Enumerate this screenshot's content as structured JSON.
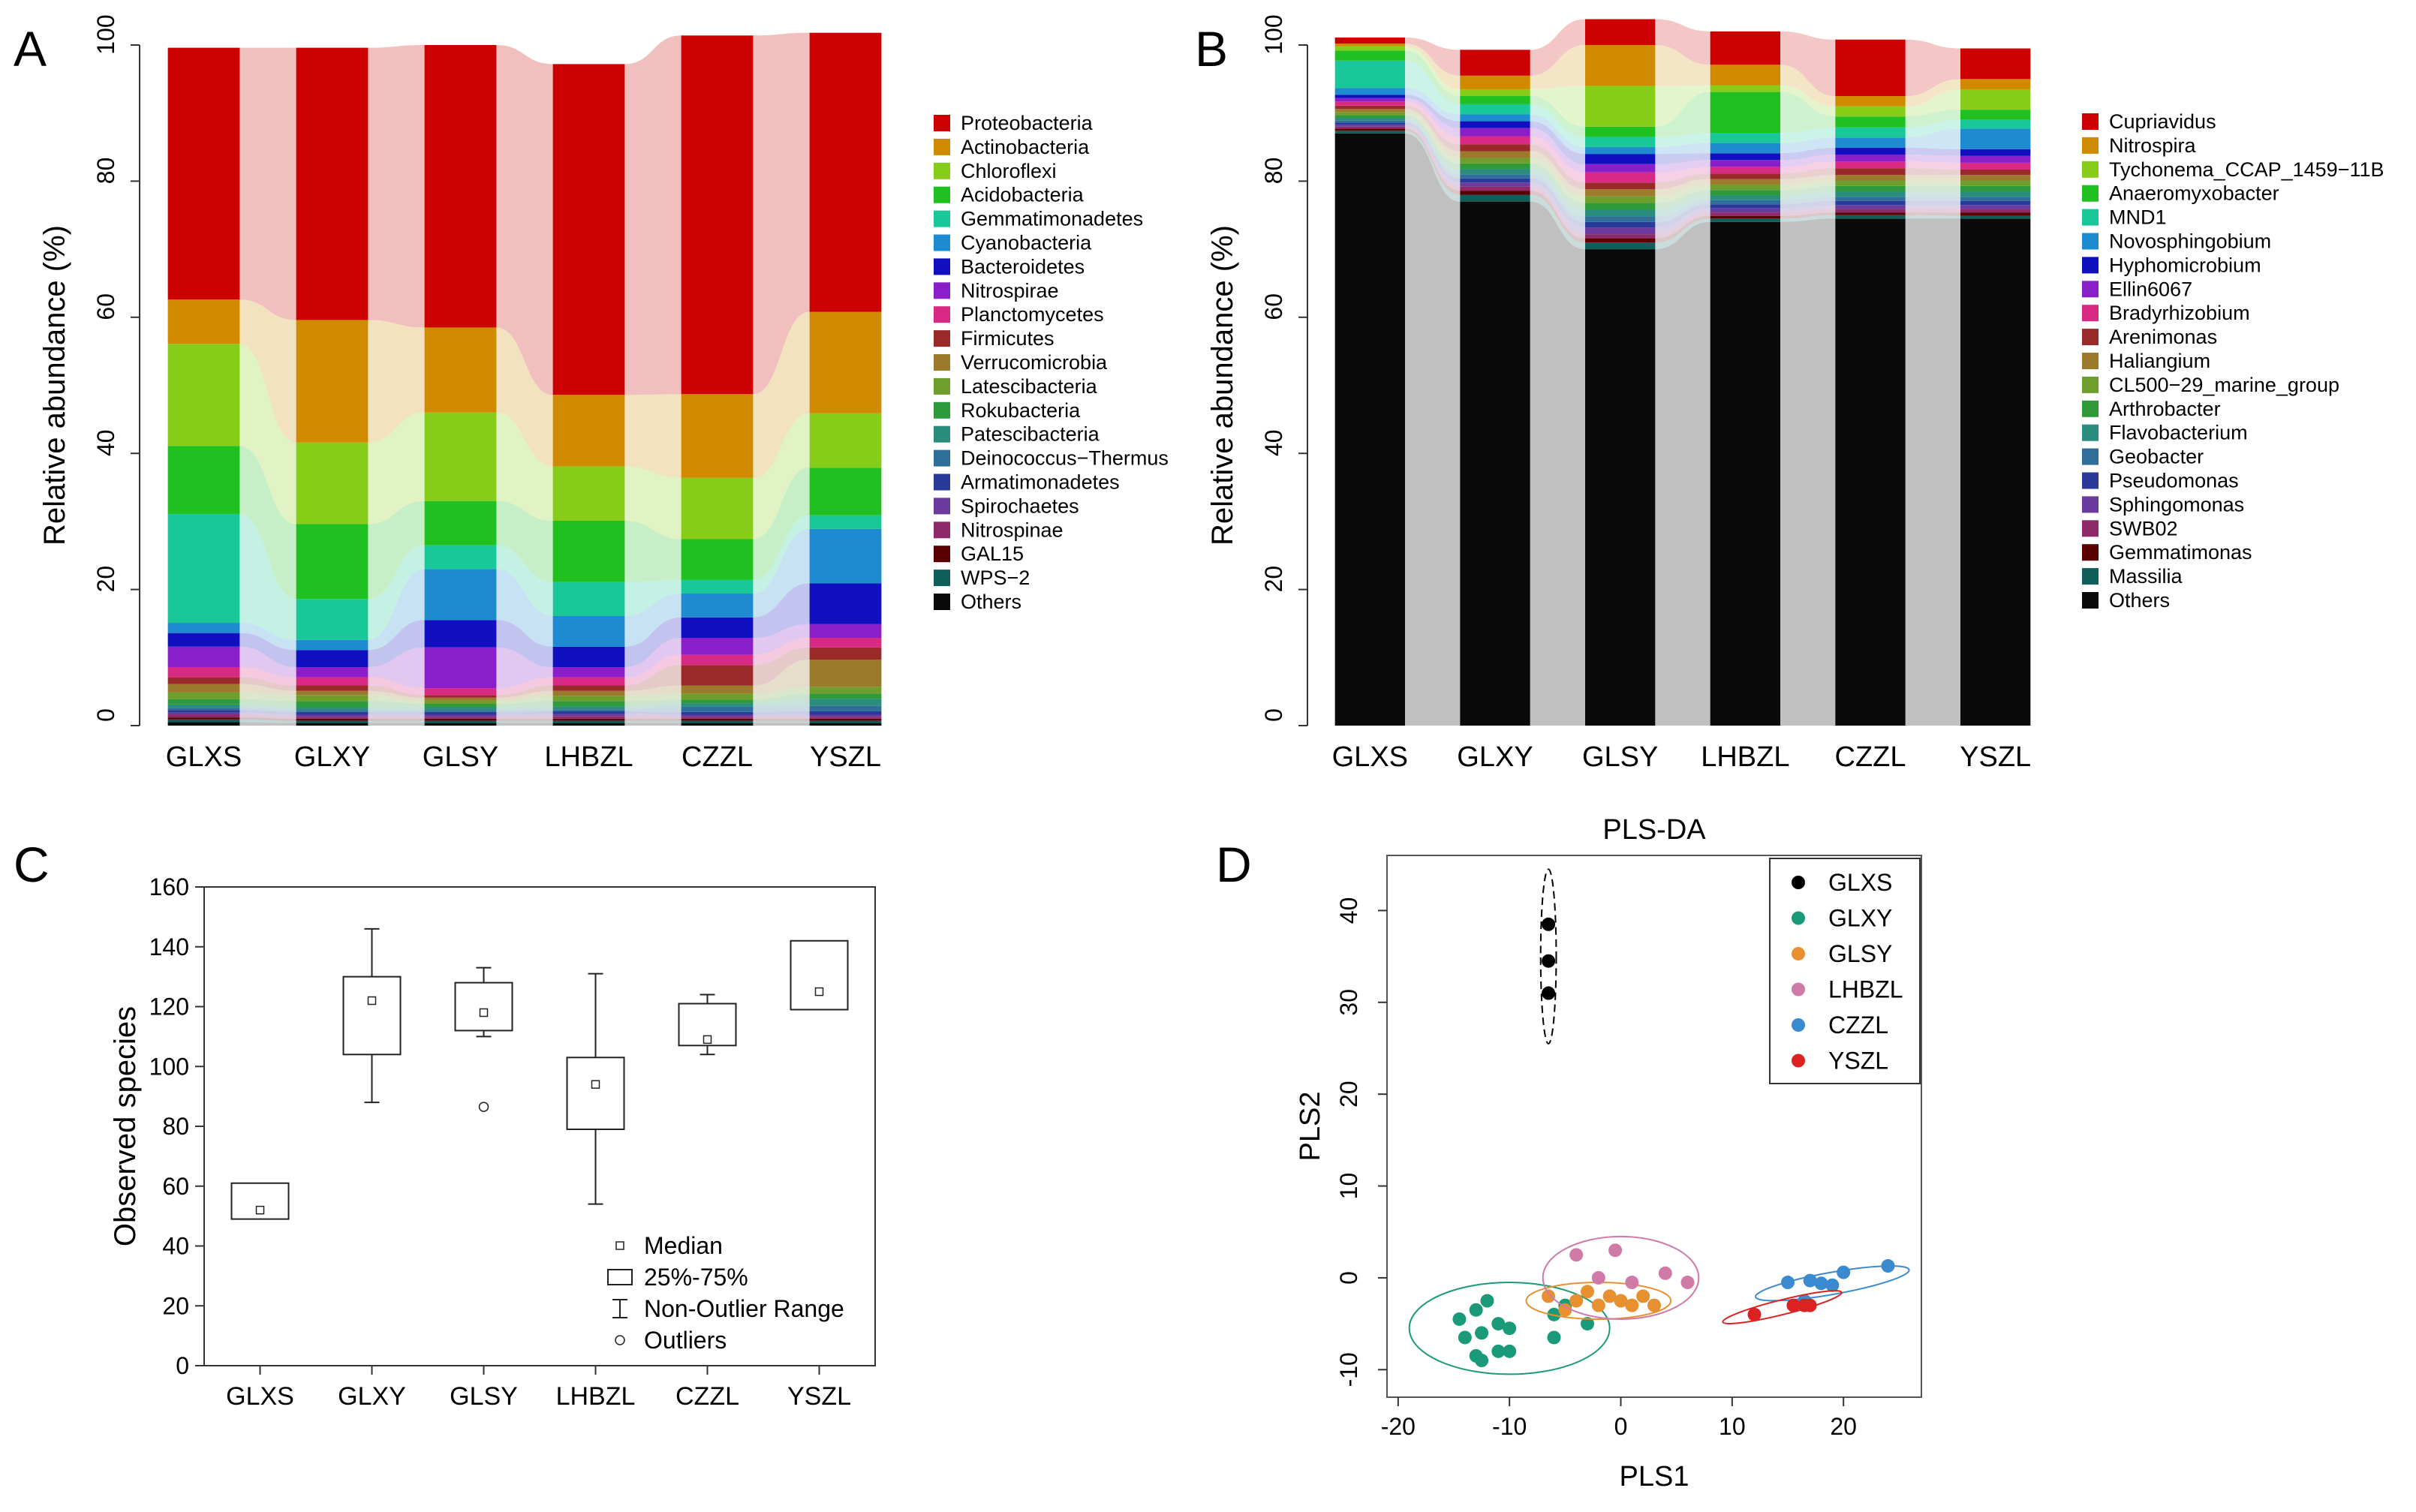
{
  "panels": {
    "a": "A",
    "b": "B",
    "c": "C",
    "d": "D"
  },
  "chart_data": [
    {
      "id": "A",
      "type": "bar",
      "stacked": true,
      "ylabel": "Relative abundance (%)",
      "ylim": [
        0,
        100
      ],
      "yticks": [
        0,
        20,
        40,
        60,
        80,
        100
      ],
      "categories": [
        "GLXS",
        "GLXY",
        "GLSY",
        "LHBZL",
        "CZZL",
        "YSZL"
      ],
      "series": [
        {
          "name": "Others",
          "color": "#0a0a0a",
          "values": [
            0.5,
            0.4,
            0.4,
            0.4,
            0.4,
            0.4
          ]
        },
        {
          "name": "WPS-2",
          "color": "#0e5e5a",
          "values": [
            0.4,
            0.3,
            0.3,
            0.3,
            0.3,
            0.3
          ]
        },
        {
          "name": "GAL15",
          "color": "#5a0000",
          "values": [
            0.3,
            0.3,
            0.3,
            0.3,
            0.3,
            0.3
          ]
        },
        {
          "name": "Nitrospinae",
          "color": "#8e2a6a",
          "values": [
            0.4,
            0.3,
            0.3,
            0.4,
            0.3,
            0.3
          ]
        },
        {
          "name": "Spirochaetes",
          "color": "#6a3a9c",
          "values": [
            0.3,
            0.3,
            0.3,
            0.3,
            0.3,
            0.3
          ]
        },
        {
          "name": "Armatimonadetes",
          "color": "#2a3a9a",
          "values": [
            0.4,
            0.4,
            0.4,
            0.4,
            0.4,
            0.5
          ]
        },
        {
          "name": "Deinococcus-Thermus",
          "color": "#2f6e98",
          "values": [
            0.3,
            0.3,
            0.3,
            0.3,
            0.8,
            0.8
          ]
        },
        {
          "name": "Patescibacteria",
          "color": "#2a8c7c",
          "values": [
            0.5,
            0.4,
            0.4,
            0.4,
            0.5,
            1.0
          ]
        },
        {
          "name": "Rokubacteria",
          "color": "#2e9a3c",
          "values": [
            0.8,
            0.9,
            0.5,
            0.8,
            0.5,
            0.8
          ]
        },
        {
          "name": "Latescibacteria",
          "color": "#6e9e2c",
          "values": [
            1.0,
            0.9,
            0.5,
            0.8,
            0.9,
            1.0
          ]
        },
        {
          "name": "Verrucomicrobia",
          "color": "#9c7a2c",
          "values": [
            1.2,
            0.6,
            0.4,
            0.7,
            1.2,
            4.0
          ]
        },
        {
          "name": "Firmicutes",
          "color": "#9a2a2a",
          "values": [
            1.0,
            0.8,
            0.4,
            0.8,
            3.0,
            1.8
          ]
        },
        {
          "name": "Planctomycetes",
          "color": "#d82a84",
          "values": [
            1.5,
            1.2,
            1.0,
            1.2,
            1.5,
            1.4
          ]
        },
        {
          "name": "Nitrospirae",
          "color": "#8a1ec8",
          "values": [
            3.0,
            1.5,
            6.0,
            1.5,
            2.5,
            2.0
          ]
        },
        {
          "name": "Bacteroidetes",
          "color": "#1010c0",
          "values": [
            2.0,
            2.5,
            4.0,
            3.0,
            3.0,
            6.0
          ]
        },
        {
          "name": "Cyanobacteria",
          "color": "#1e8ad0",
          "values": [
            1.5,
            1.5,
            7.5,
            4.5,
            3.5,
            8.0
          ]
        },
        {
          "name": "Gemmatimonadetes",
          "color": "#18c898",
          "values": [
            16.0,
            6.0,
            3.5,
            5.0,
            2.0,
            2.0
          ]
        },
        {
          "name": "Acidobacteria",
          "color": "#20c020",
          "values": [
            10.0,
            11.0,
            6.5,
            9.0,
            6.0,
            7.0
          ]
        },
        {
          "name": "Chloroflexi",
          "color": "#86cc18",
          "values": [
            15.0,
            12.0,
            13.0,
            8.0,
            9.0,
            8.0
          ]
        },
        {
          "name": "Actinobacteria",
          "color": "#d08a00",
          "values": [
            6.5,
            18.0,
            12.5,
            10.5,
            12.3,
            14.9
          ]
        },
        {
          "name": "Proteobacteria",
          "color": "#cc0000",
          "values": [
            37.0,
            40.0,
            41.5,
            48.6,
            52.7,
            41.0
          ]
        }
      ],
      "legend": [
        "Proteobacteria",
        "Actinobacteria",
        "Chloroflexi",
        "Acidobacteria",
        "Gemmatimonadetes",
        "Cyanobacteria",
        "Bacteroidetes",
        "Nitrospirae",
        "Planctomycetes",
        "Firmicutes",
        "Verrucomicrobia",
        "Latescibacteria",
        "Rokubacteria",
        "Patescibacteria",
        "Deinococcus−Thermus",
        "Armatimonadetes",
        "Spirochaetes",
        "Nitrospinae",
        "GAL15",
        "WPS−2",
        "Others"
      ]
    },
    {
      "id": "B",
      "type": "bar",
      "stacked": true,
      "ylabel": "Relative abundance (%)",
      "ylim": [
        0,
        100
      ],
      "yticks": [
        0,
        20,
        40,
        60,
        80,
        100
      ],
      "categories": [
        "GLXS",
        "GLXY",
        "GLSY",
        "LHBZL",
        "CZZL",
        "YSZL"
      ],
      "series": [
        {
          "name": "Others",
          "color": "#0a0a0a",
          "values": [
            87.0,
            77.0,
            70.0,
            74.0,
            74.5,
            74.5
          ]
        },
        {
          "name": "Massilia",
          "color": "#0e5e5a",
          "values": [
            0.4,
            1.0,
            1.0,
            0.5,
            0.5,
            0.4
          ]
        },
        {
          "name": "Gemmatimonas",
          "color": "#5a0000",
          "values": [
            0.3,
            0.6,
            0.6,
            0.4,
            0.4,
            0.5
          ]
        },
        {
          "name": "SWB02",
          "color": "#8e2a6a",
          "values": [
            0.3,
            0.6,
            0.6,
            0.5,
            0.5,
            0.5
          ]
        },
        {
          "name": "Sphingomonas",
          "color": "#6a3a9c",
          "values": [
            0.3,
            0.6,
            1.0,
            0.6,
            0.6,
            0.6
          ]
        },
        {
          "name": "Pseudomonas",
          "color": "#2a3a9a",
          "values": [
            0.3,
            0.6,
            0.8,
            0.6,
            0.6,
            0.6
          ]
        },
        {
          "name": "Geobacter",
          "color": "#2f6e98",
          "values": [
            0.3,
            0.6,
            0.8,
            0.6,
            0.6,
            0.6
          ]
        },
        {
          "name": "Flavobacterium",
          "color": "#2a8c7c",
          "values": [
            0.4,
            0.8,
            1.0,
            0.7,
            0.8,
            0.8
          ]
        },
        {
          "name": "Arthrobacter",
          "color": "#2e9a3c",
          "values": [
            0.4,
            0.8,
            1.0,
            0.8,
            0.8,
            0.8
          ]
        },
        {
          "name": "CL500-29_marine_group",
          "color": "#6e9e2c",
          "values": [
            0.4,
            0.8,
            1.0,
            0.8,
            0.8,
            0.8
          ]
        },
        {
          "name": "Haliangium",
          "color": "#9c7a2c",
          "values": [
            0.5,
            1.0,
            1.0,
            0.8,
            0.8,
            0.8
          ]
        },
        {
          "name": "Arenimonas",
          "color": "#9a2a2a",
          "values": [
            0.5,
            1.0,
            1.0,
            0.8,
            1.0,
            0.8
          ]
        },
        {
          "name": "Bradyrhizobium",
          "color": "#d82a84",
          "values": [
            0.6,
            1.2,
            1.5,
            1.0,
            1.0,
            1.0
          ]
        },
        {
          "name": "Ellin6067",
          "color": "#8a1ec8",
          "values": [
            0.5,
            1.2,
            1.2,
            1.0,
            1.0,
            1.0
          ]
        },
        {
          "name": "Hyphomicrobium",
          "color": "#1010c0",
          "values": [
            0.5,
            1.0,
            1.5,
            1.0,
            1.0,
            1.0
          ]
        },
        {
          "name": "Novosphingobium",
          "color": "#1e8ad0",
          "values": [
            1.0,
            1.0,
            1.0,
            1.5,
            1.5,
            3.0
          ]
        },
        {
          "name": "MND1",
          "color": "#18c898",
          "values": [
            4.0,
            1.5,
            1.5,
            1.5,
            1.5,
            1.3
          ]
        },
        {
          "name": "Anaeromyxobacter",
          "color": "#20c020",
          "values": [
            1.5,
            1.2,
            1.5,
            6.0,
            1.6,
            1.5
          ]
        },
        {
          "name": "Tychonema_CCAP_1459-11B",
          "color": "#86cc18",
          "values": [
            0.6,
            1.0,
            6.0,
            1.0,
            1.5,
            3.0
          ]
        },
        {
          "name": "Nitrospira",
          "color": "#d08a00",
          "values": [
            0.4,
            2.0,
            6.0,
            3.0,
            1.5,
            1.5
          ]
        },
        {
          "name": "Cupriavidus",
          "color": "#cc0000",
          "values": [
            0.9,
            3.8,
            3.8,
            4.9,
            8.3,
            4.5
          ]
        }
      ],
      "legend": [
        "Cupriavidus",
        "Nitrospira",
        "Tychonema_CCAP_1459−11B",
        "Anaeromyxobacter",
        "MND1",
        "Novosphingobium",
        "Hyphomicrobium",
        "Ellin6067",
        "Bradyrhizobium",
        "Arenimonas",
        "Haliangium",
        "CL500−29_marine_group",
        "Arthrobacter",
        "Flavobacterium",
        "Geobacter",
        "Pseudomonas",
        "Sphingomonas",
        "SWB02",
        "Gemmatimonas",
        "Massilia",
        "Others"
      ]
    },
    {
      "id": "C",
      "type": "box",
      "ylabel": "Observed species",
      "ylim": [
        0,
        160
      ],
      "yticks": [
        0,
        20,
        40,
        60,
        80,
        100,
        120,
        140,
        160
      ],
      "categories": [
        "GLXS",
        "GLXY",
        "GLSY",
        "LHBZL",
        "CZZL",
        "YSZL"
      ],
      "boxes": [
        {
          "q1": 49,
          "q3": 61,
          "median": 52,
          "whisker_low": null,
          "whisker_high": null,
          "outliers": []
        },
        {
          "q1": 104,
          "q3": 130,
          "median": 122,
          "whisker_low": 88,
          "whisker_high": 146,
          "outliers": []
        },
        {
          "q1": 112,
          "q3": 128,
          "median": 118,
          "whisker_low": 110,
          "whisker_high": 133,
          "outliers": [
            86.5
          ]
        },
        {
          "q1": 79,
          "q3": 103,
          "median": 94,
          "whisker_low": 54,
          "whisker_high": 131,
          "outliers": []
        },
        {
          "q1": 107,
          "q3": 121,
          "median": 109,
          "whisker_low": 104,
          "whisker_high": 124,
          "outliers": []
        },
        {
          "q1": 119,
          "q3": 142,
          "median": 125,
          "whisker_low": null,
          "whisker_high": null,
          "outliers": []
        }
      ],
      "legend": [
        "Median",
        "25%-75%",
        "Non-Outlier Range",
        "Outliers"
      ]
    },
    {
      "id": "D",
      "type": "scatter",
      "title": "PLS-DA",
      "xlabel": "PLS1",
      "ylabel": "PLS2",
      "xlim": [
        -21,
        27
      ],
      "ylim": [
        -13,
        46
      ],
      "xticks": [
        -20,
        -10,
        0,
        10,
        20
      ],
      "yticks": [
        -10,
        0,
        10,
        20,
        30,
        40
      ],
      "series": [
        {
          "name": "GLXS",
          "color": "#000000",
          "points": [
            [
              -6.5,
              38.5
            ],
            [
              -6.5,
              34.5
            ],
            [
              -6.5,
              31
            ]
          ],
          "ellipse": {
            "cx": -6.5,
            "cy": 35,
            "rx": 0.7,
            "ry": 9.5,
            "angle": 0
          }
        },
        {
          "name": "GLXY",
          "color": "#1a9a78",
          "points": [
            [
              -14.5,
              -4.5
            ],
            [
              -13,
              -3.5
            ],
            [
              -12,
              -2.5
            ],
            [
              -14,
              -6.5
            ],
            [
              -12.5,
              -6
            ],
            [
              -11,
              -5
            ],
            [
              -13,
              -8.5
            ],
            [
              -12.5,
              -9
            ],
            [
              -11,
              -8
            ],
            [
              -10,
              -8
            ],
            [
              -10,
              -5.5
            ],
            [
              -6,
              -6.5
            ],
            [
              -6,
              -4
            ],
            [
              -5,
              -3
            ],
            [
              -3,
              -5
            ]
          ],
          "ellipse": {
            "cx": -10,
            "cy": -5.5,
            "rx": 9,
            "ry": 5,
            "angle": 0
          }
        },
        {
          "name": "GLSY",
          "color": "#e89030",
          "points": [
            [
              -6.5,
              -2
            ],
            [
              -5,
              -3.5
            ],
            [
              -4,
              -2.5
            ],
            [
              -3,
              -1.5
            ],
            [
              -2,
              -3
            ],
            [
              -1,
              -2
            ],
            [
              0,
              -2.5
            ],
            [
              1,
              -3
            ],
            [
              2,
              -2
            ],
            [
              3,
              -3
            ]
          ],
          "ellipse": {
            "cx": -2,
            "cy": -2.5,
            "rx": 6.5,
            "ry": 2,
            "angle": 0
          }
        },
        {
          "name": "LHBZL",
          "color": "#d07aa8",
          "points": [
            [
              -4,
              2.5
            ],
            [
              -0.5,
              3
            ],
            [
              1,
              -0.5
            ],
            [
              4,
              0.5
            ],
            [
              6,
              -0.5
            ],
            [
              -2,
              0
            ]
          ],
          "ellipse": {
            "cx": 0,
            "cy": 0,
            "rx": 7,
            "ry": 4.5,
            "angle": 0
          }
        },
        {
          "name": "CZZL",
          "color": "#3a8ad0",
          "points": [
            [
              15,
              -0.5
            ],
            [
              17,
              -0.3
            ],
            [
              18,
              -0.6
            ],
            [
              19,
              -0.8
            ],
            [
              20,
              0.6
            ],
            [
              24,
              1.3
            ],
            [
              16.5,
              -2.5
            ]
          ],
          "ellipse": {
            "cx": 19,
            "cy": -0.6,
            "rx": 7,
            "ry": 1.2,
            "angle": -10
          }
        },
        {
          "name": "YSZL",
          "color": "#dd2020",
          "points": [
            [
              12,
              -4
            ],
            [
              15.5,
              -3
            ],
            [
              16.5,
              -3
            ],
            [
              17,
              -3
            ]
          ],
          "ellipse": {
            "cx": 14.5,
            "cy": -3.2,
            "rx": 5.5,
            "ry": 0.8,
            "angle": -14
          }
        }
      ]
    }
  ]
}
